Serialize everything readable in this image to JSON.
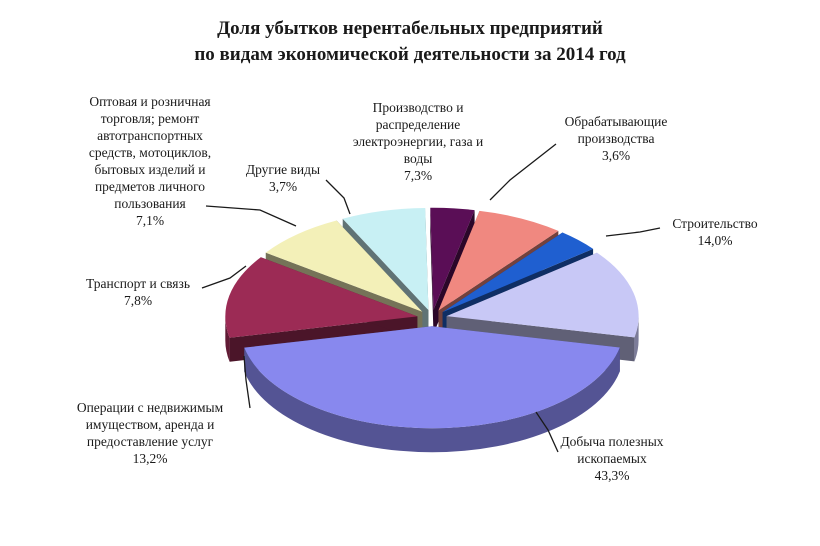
{
  "title_line_1": "Доля убытков нерентабельных предприятий",
  "title_line_2": "по видам экономической деятельности за 2014 год",
  "chart_data": {
    "type": "pie",
    "title": "Доля убытков нерентабельных предприятий по видам экономической деятельности за 2014 год",
    "unit": "%",
    "style": "3d-exploded",
    "slices": [
      {
        "key": "mining",
        "label_lines": [
          "Добыча полезных",
          "ископаемых"
        ],
        "value_text": "43,3%",
        "value": 43.3,
        "color": "#8888ee"
      },
      {
        "key": "real_estate",
        "label_lines": [
          "Операции с недвижимым",
          "имуществом, аренда и",
          "предоставление услуг"
        ],
        "value_text": "13,2%",
        "value": 13.2,
        "color": "#9c2b55"
      },
      {
        "key": "transport",
        "label_lines": [
          "Транспорт и связь"
        ],
        "value_text": "7,8%",
        "value": 7.8,
        "color": "#f3f0b8"
      },
      {
        "key": "trade",
        "label_lines": [
          "Оптовая и розничная",
          "торговля; ремонт",
          "автотранспортных",
          "средств, мотоциклов,",
          "бытовых изделий и",
          "предметов личного",
          "пользования"
        ],
        "value_text": "7,1%",
        "value": 7.1,
        "color": "#c8f0f4"
      },
      {
        "key": "other",
        "label_lines": [
          "Другие виды"
        ],
        "value_text": "3,7%",
        "value": 3.7,
        "color": "#5a0e56"
      },
      {
        "key": "energy",
        "label_lines": [
          "Производство и",
          "распределение",
          "электроэнергии, газа и",
          "воды"
        ],
        "value_text": "7,3%",
        "value": 7.3,
        "color": "#f08880"
      },
      {
        "key": "manufacturing",
        "label_lines": [
          "Обрабатывающие",
          "производства"
        ],
        "value_text": "3,6%",
        "value": 3.6,
        "color": "#1f5fd0"
      },
      {
        "key": "construction",
        "label_lines": [
          "Строительство"
        ],
        "value_text": "14,0%",
        "value": 14.0,
        "color": "#c8c8f6"
      }
    ]
  }
}
